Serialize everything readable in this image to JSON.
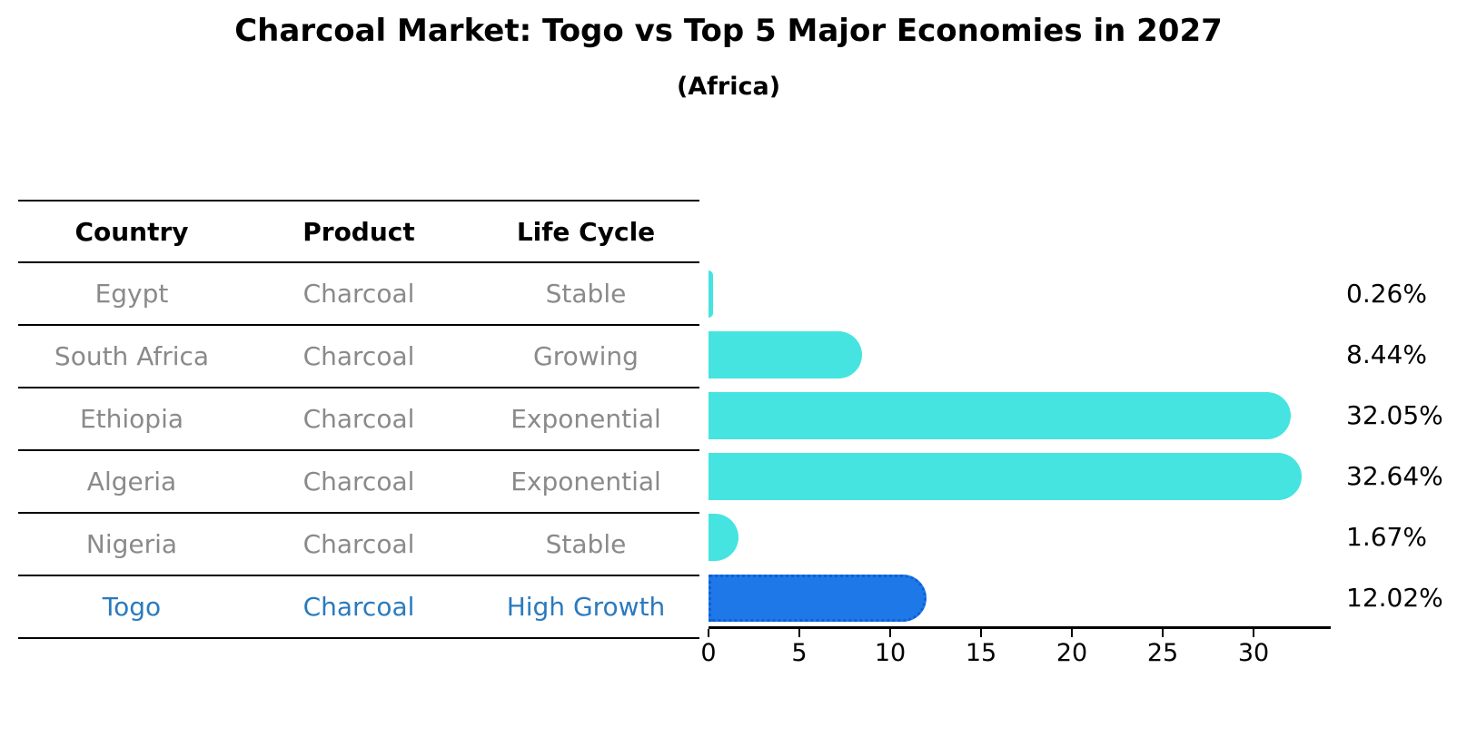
{
  "title": "Charcoal Market: Togo vs Top 5 Major Economies in 2027",
  "subtitle": "(Africa)",
  "table": {
    "headers": [
      "Country",
      "Product",
      "Life Cycle"
    ],
    "rows": [
      {
        "country": "Egypt",
        "product": "Charcoal",
        "life_cycle": "Stable",
        "highlight": false
      },
      {
        "country": "South Africa",
        "product": "Charcoal",
        "life_cycle": "Growing",
        "highlight": false
      },
      {
        "country": "Ethiopia",
        "product": "Charcoal",
        "life_cycle": "Exponential",
        "highlight": false
      },
      {
        "country": "Algeria",
        "product": "Charcoal",
        "life_cycle": "Exponential",
        "highlight": false
      },
      {
        "country": "Nigeria",
        "product": "Charcoal",
        "life_cycle": "Stable",
        "highlight": false
      },
      {
        "country": "Togo",
        "product": "Charcoal",
        "life_cycle": "High Growth",
        "highlight": true
      }
    ]
  },
  "chart_data": {
    "type": "bar",
    "orientation": "horizontal",
    "title": "Charcoal Market: Togo vs Top 5 Major Economies in 2027",
    "subtitle": "(Africa)",
    "categories": [
      "Egypt",
      "South Africa",
      "Ethiopia",
      "Algeria",
      "Nigeria",
      "Togo"
    ],
    "values": [
      0.26,
      8.44,
      32.05,
      32.64,
      1.67,
      12.02
    ],
    "value_labels": [
      "0.26%",
      "8.44%",
      "32.05%",
      "32.64%",
      "1.67%",
      "12.02%"
    ],
    "xlabel": "",
    "ylabel": "",
    "xlim": [
      0,
      34.25
    ],
    "x_ticks": [
      0,
      5,
      10,
      15,
      20,
      25,
      30
    ],
    "grid": false,
    "legend": false,
    "highlight_index": 5
  },
  "colors": {
    "bar": "#45E4E0",
    "highlight_bar": "#1E78E8",
    "highlight_border": "#0E5FD8",
    "highlight_text": "#2A7ABF",
    "cell_text": "#8A8A8A",
    "header_text": "#000000",
    "axis": "#000000",
    "background": "#FFFFFF"
  }
}
